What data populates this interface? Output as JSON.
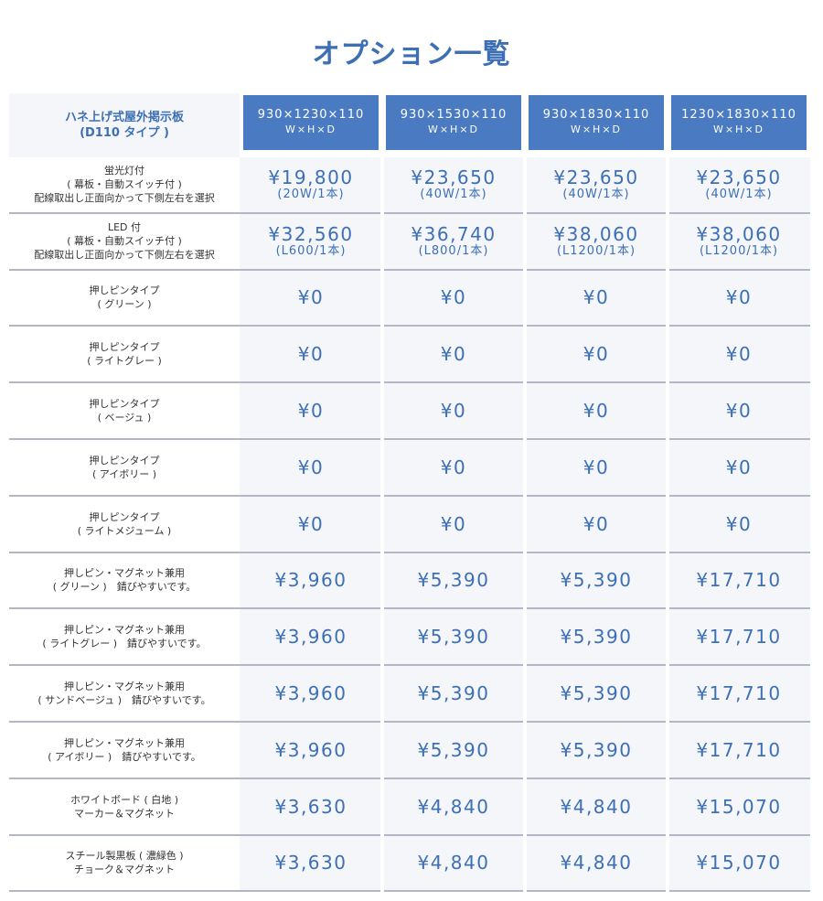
{
  "title": "オプション一覧",
  "header": {
    "label_lines": [
      "ハネ上げ式屋外掲示板",
      "(D110 タイプ )"
    ],
    "columns": [
      {
        "size": "930×1230×110",
        "sub": "W×H×D"
      },
      {
        "size": "930×1530×110",
        "sub": "W×H×D"
      },
      {
        "size": "930×1830×110",
        "sub": "W×H×D"
      },
      {
        "size": "1230×1830×110",
        "sub": "W×H×D"
      }
    ]
  },
  "rows": [
    {
      "label": [
        "蛍光灯付",
        "( 幕板・自動スイッチ付 )",
        "配線取出し正面向かって下側左右を選択"
      ],
      "prices": [
        "¥19,800",
        "¥23,650",
        "¥23,650",
        "¥23,650"
      ],
      "notes": [
        "(20W/1本)",
        "(40W/1本)",
        "(40W/1本)",
        "(40W/1本)"
      ]
    },
    {
      "label": [
        "LED 付",
        "( 幕板・自動スイッチ付 )",
        "配線取出し正面向かって下側左右を選択"
      ],
      "prices": [
        "¥32,560",
        "¥36,740",
        "¥38,060",
        "¥38,060"
      ],
      "notes": [
        "(L600/1本)",
        "(L800/1本)",
        "(L1200/1本)",
        "(L1200/1本)"
      ]
    },
    {
      "label": [
        "押しピンタイプ",
        "( グリーン )"
      ],
      "prices": [
        "¥0",
        "¥0",
        "¥0",
        "¥0"
      ]
    },
    {
      "label": [
        "押しピンタイプ",
        "( ライトグレー )"
      ],
      "prices": [
        "¥0",
        "¥0",
        "¥0",
        "¥0"
      ]
    },
    {
      "label": [
        "押しピンタイプ",
        "( ベージュ )"
      ],
      "prices": [
        "¥0",
        "¥0",
        "¥0",
        "¥0"
      ]
    },
    {
      "label": [
        "押しピンタイプ",
        "( アイボリー )"
      ],
      "prices": [
        "¥0",
        "¥0",
        "¥0",
        "¥0"
      ]
    },
    {
      "label": [
        "押しピンタイプ",
        "( ライトメジューム )"
      ],
      "prices": [
        "¥0",
        "¥0",
        "¥0",
        "¥0"
      ]
    },
    {
      "label": [
        "押しピン・マグネット兼用",
        "( グリーン )　錆びやすいです。"
      ],
      "prices": [
        "¥3,960",
        "¥5,390",
        "¥5,390",
        "¥17,710"
      ]
    },
    {
      "label": [
        "押しピン・マグネット兼用",
        "( ライトグレー )　錆びやすいです。"
      ],
      "prices": [
        "¥3,960",
        "¥5,390",
        "¥5,390",
        "¥17,710"
      ]
    },
    {
      "label": [
        "押しピン・マグネット兼用",
        "( サンドベージュ )　錆びやすいです。"
      ],
      "prices": [
        "¥3,960",
        "¥5,390",
        "¥5,390",
        "¥17,710"
      ]
    },
    {
      "label": [
        "押しピン・マグネット兼用",
        "( アイボリー )　錆びやすいです。"
      ],
      "prices": [
        "¥3,960",
        "¥5,390",
        "¥5,390",
        "¥17,710"
      ]
    },
    {
      "label": [
        "ホワイトボード ( 白地 )",
        "マーカー＆マグネット"
      ],
      "prices": [
        "¥3,630",
        "¥4,840",
        "¥4,840",
        "¥15,070"
      ]
    },
    {
      "label": [
        "スチール製黒板 ( 濃緑色 )",
        "チョーク＆マグネット"
      ],
      "prices": [
        "¥3,630",
        "¥4,840",
        "¥4,840",
        "¥15,070"
      ]
    }
  ]
}
